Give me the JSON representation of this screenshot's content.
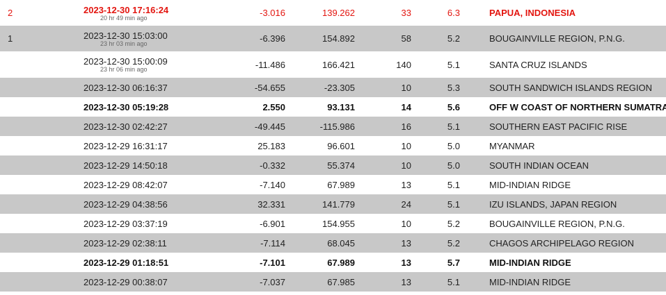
{
  "rows": [
    {
      "rank": "2",
      "time": "2023-12-30 17:16:24",
      "ago": "20 hr 49 min ago",
      "lat": "-3.016",
      "lon": "139.262",
      "depth": "33",
      "mag": "6.3",
      "region": "PAPUA, INDONESIA"
    },
    {
      "rank": "1",
      "time": "2023-12-30 15:03:00",
      "ago": "23 hr 03 min ago",
      "lat": "-6.396",
      "lon": "154.892",
      "depth": "58",
      "mag": "5.2",
      "region": "BOUGAINVILLE REGION, P.N.G."
    },
    {
      "rank": "",
      "time": "2023-12-30 15:00:09",
      "ago": "23 hr 06 min ago",
      "lat": "-11.486",
      "lon": "166.421",
      "depth": "140",
      "mag": "5.1",
      "region": "SANTA CRUZ ISLANDS"
    },
    {
      "rank": "",
      "time": "2023-12-30 06:16:37",
      "ago": "",
      "lat": "-54.655",
      "lon": "-23.305",
      "depth": "10",
      "mag": "5.3",
      "region": "SOUTH SANDWICH ISLANDS REGION"
    },
    {
      "rank": "",
      "time": "2023-12-30 05:19:28",
      "ago": "",
      "lat": "2.550",
      "lon": "93.131",
      "depth": "14",
      "mag": "5.6",
      "region": "OFF W COAST OF NORTHERN SUMATRA"
    },
    {
      "rank": "",
      "time": "2023-12-30 02:42:27",
      "ago": "",
      "lat": "-49.445",
      "lon": "-115.986",
      "depth": "16",
      "mag": "5.1",
      "region": "SOUTHERN EAST PACIFIC RISE"
    },
    {
      "rank": "",
      "time": "2023-12-29 16:31:17",
      "ago": "",
      "lat": "25.183",
      "lon": "96.601",
      "depth": "10",
      "mag": "5.0",
      "region": "MYANMAR"
    },
    {
      "rank": "",
      "time": "2023-12-29 14:50:18",
      "ago": "",
      "lat": "-0.332",
      "lon": "55.374",
      "depth": "10",
      "mag": "5.0",
      "region": "SOUTH INDIAN OCEAN"
    },
    {
      "rank": "",
      "time": "2023-12-29 08:42:07",
      "ago": "",
      "lat": "-7.140",
      "lon": "67.989",
      "depth": "13",
      "mag": "5.1",
      "region": "MID-INDIAN RIDGE"
    },
    {
      "rank": "",
      "time": "2023-12-29 04:38:56",
      "ago": "",
      "lat": "32.331",
      "lon": "141.779",
      "depth": "24",
      "mag": "5.1",
      "region": "IZU ISLANDS, JAPAN REGION"
    },
    {
      "rank": "",
      "time": "2023-12-29 03:37:19",
      "ago": "",
      "lat": "-6.901",
      "lon": "154.955",
      "depth": "10",
      "mag": "5.2",
      "region": "BOUGAINVILLE REGION, P.N.G."
    },
    {
      "rank": "",
      "time": "2023-12-29 02:38:11",
      "ago": "",
      "lat": "-7.114",
      "lon": "68.045",
      "depth": "13",
      "mag": "5.2",
      "region": "CHAGOS ARCHIPELAGO REGION"
    },
    {
      "rank": "",
      "time": "2023-12-29 01:18:51",
      "ago": "",
      "lat": "-7.101",
      "lon": "67.989",
      "depth": "13",
      "mag": "5.7",
      "region": "MID-INDIAN RIDGE"
    },
    {
      "rank": "",
      "time": "2023-12-29 00:38:07",
      "ago": "",
      "lat": "-7.037",
      "lon": "67.985",
      "depth": "13",
      "mag": "5.1",
      "region": "MID-INDIAN RIDGE"
    }
  ]
}
